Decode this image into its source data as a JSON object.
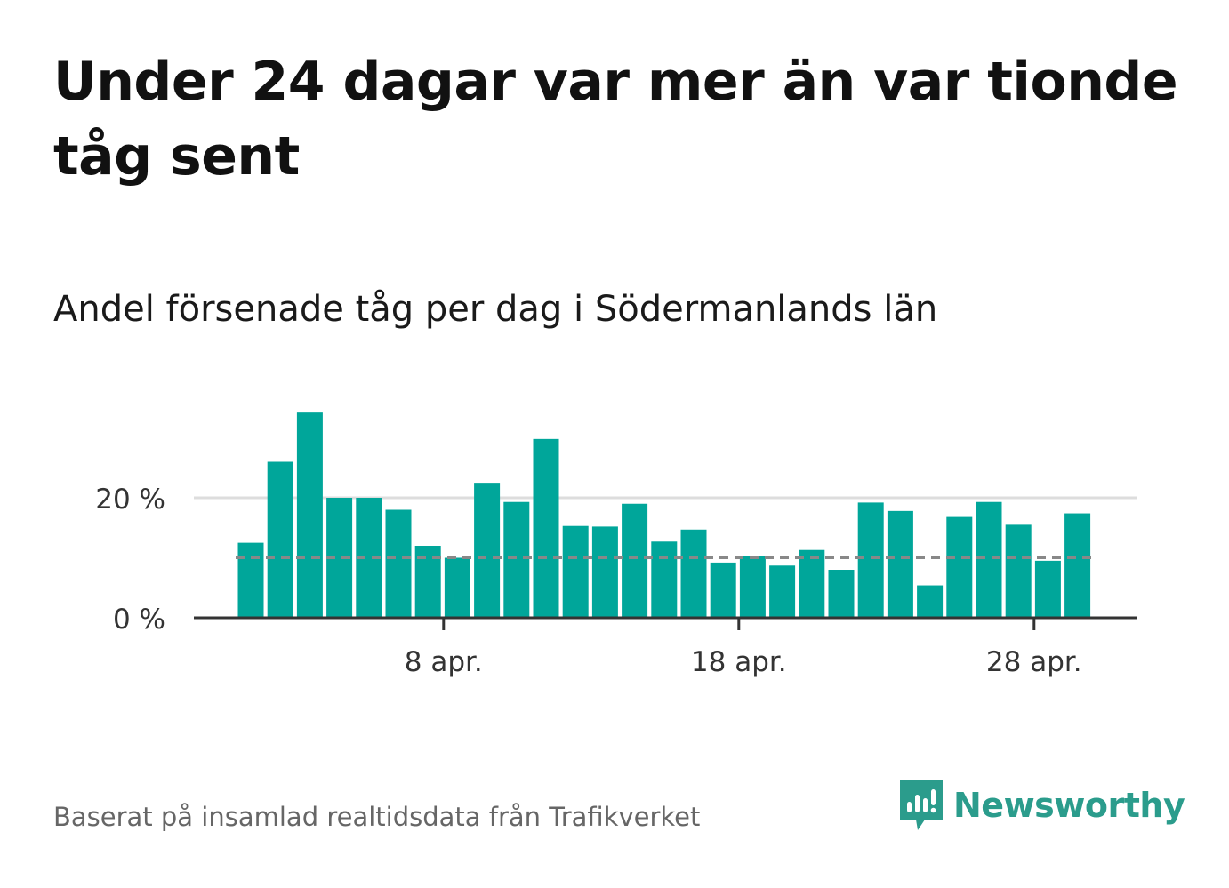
{
  "headline": "Under 24 dagar var mer än var tionde tåg sent",
  "subtitle": "Andel försenade tåg per dag i Södermanlands län",
  "source": "Baserat på insamlad realtidsdata från Trafikverket",
  "brand": {
    "name": "Newsworthy",
    "icon": "newsworthy-logo-icon",
    "color": "#2b9c8c"
  },
  "colors": {
    "bar": "#00a69a",
    "reference_line": "#888888",
    "grid": "#dddddd",
    "axis": "#333333"
  },
  "chart_data": {
    "type": "bar",
    "x_start": "2024-04-01",
    "x": [
      "1 apr.",
      "2 apr.",
      "3 apr.",
      "4 apr.",
      "5 apr.",
      "6 apr.",
      "7 apr.",
      "8 apr.",
      "9 apr.",
      "10 apr.",
      "11 apr.",
      "12 apr.",
      "13 apr.",
      "14 apr.",
      "15 apr.",
      "16 apr.",
      "17 apr.",
      "18 apr.",
      "19 apr.",
      "20 apr.",
      "21 apr.",
      "22 apr.",
      "23 apr.",
      "24 apr.",
      "25 apr.",
      "26 apr.",
      "27 apr.",
      "28 apr.",
      "29 apr."
    ],
    "values": [
      12.5,
      26.0,
      34.2,
      20.0,
      20.0,
      18.0,
      12.0,
      10.0,
      22.5,
      19.3,
      29.8,
      15.3,
      15.2,
      19.0,
      12.7,
      14.7,
      9.2,
      10.3,
      8.7,
      11.3,
      8.0,
      19.2,
      17.8,
      5.4,
      16.8,
      19.3,
      15.5,
      9.5,
      17.4
    ],
    "reference_line": 10,
    "ylim": [
      0,
      36
    ],
    "yticks": [
      0,
      20
    ],
    "ytick_labels": [
      "0 %",
      "20 %"
    ],
    "xticks": [
      "8 apr.",
      "18 apr.",
      "28 apr."
    ],
    "grid": true
  }
}
